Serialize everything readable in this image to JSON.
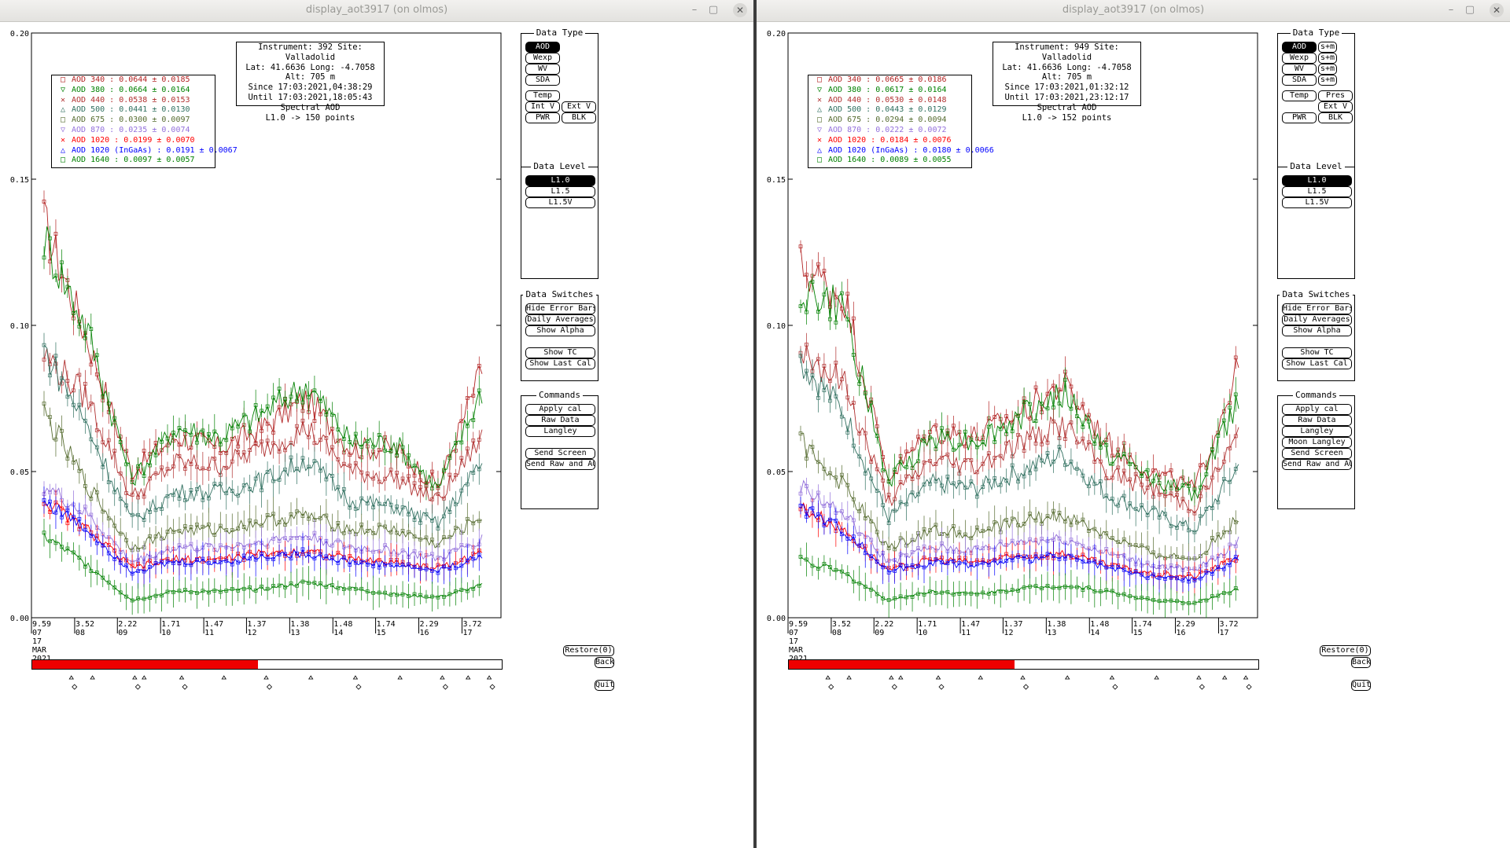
{
  "windows": [
    {
      "title": "display_aot3917 (on olmos)",
      "info": [
        "Instrument: 392 Site: Valladolid",
        "Lat: 41.6636 Long: -4.7058 Alt: 705 m",
        "Since 17:03:2021,04:38:29",
        "Until 17:03:2021,18:05:43",
        "Spectral AOD",
        "L1.0 -> 150 points"
      ],
      "legend": [
        {
          "label": "AOD 340  : 0.0644 ± 0.0185",
          "color": "#b22222",
          "marker": "□"
        },
        {
          "label": "AOD 380  : 0.0664 ± 0.0164",
          "color": "#008000",
          "marker": "▽"
        },
        {
          "label": "AOD 440  : 0.0538 ± 0.0153",
          "color": "#b03030",
          "marker": "✕"
        },
        {
          "label": "AOD 500  : 0.0441 ± 0.0130",
          "color": "#2f6f5f",
          "marker": "△"
        },
        {
          "label": "AOD 675  : 0.0300 ± 0.0097",
          "color": "#556b2f",
          "marker": "□"
        },
        {
          "label": "AOD 870  : 0.0235 ± 0.0074",
          "color": "#9370db",
          "marker": "▽"
        },
        {
          "label": "AOD 1020  : 0.0199 ± 0.0070",
          "color": "#ff0000",
          "marker": "✕"
        },
        {
          "label": "AOD 1020 (InGaAs)  : 0.0191 ± 0.0067",
          "color": "#0000ff",
          "marker": "△"
        },
        {
          "label": "AOD 1640  : 0.0097 ± 0.0057",
          "color": "#008000",
          "marker": "□"
        }
      ],
      "yticks": [
        "0.20",
        "0.15",
        "0.10",
        "0.05",
        "0.00"
      ],
      "xticks": [
        {
          "a": "9.59",
          "b": "07",
          "pos": 0.0
        },
        {
          "a": "3.52",
          "b": "08",
          "pos": 0.092
        },
        {
          "a": "2.22",
          "b": "09",
          "pos": 0.183
        },
        {
          "a": "1.71",
          "b": "10",
          "pos": 0.275
        },
        {
          "a": "1.47",
          "b": "11",
          "pos": 0.367
        },
        {
          "a": "1.37",
          "b": "12",
          "pos": 0.458
        },
        {
          "a": "1.38",
          "b": "13",
          "pos": 0.55
        },
        {
          "a": "1.48",
          "b": "14",
          "pos": 0.642
        },
        {
          "a": "1.74",
          "b": "15",
          "pos": 0.733
        },
        {
          "a": "2.29",
          "b": "16",
          "pos": 0.825
        },
        {
          "a": "3.72",
          "b": "17",
          "pos": 0.917
        }
      ],
      "date_label": [
        "17",
        "MAR",
        "2021"
      ],
      "progress": 0.48,
      "datatype_title": "Data Type",
      "datatype_buttons": [
        [
          "AOD"
        ],
        [
          "Wexp"
        ],
        [
          "WV"
        ],
        [
          "SDA"
        ]
      ],
      "datatype_selected": "AOD",
      "temp_buttons": [
        [
          "Temp",
          ""
        ],
        [
          "Int V",
          "Ext V"
        ],
        [
          "PWR",
          "BLK"
        ]
      ],
      "datalevel_title": "Data Level",
      "datalevel_buttons": [
        "L1.0",
        "L1.5",
        "L1.5V"
      ],
      "switches_title": "Data Switches",
      "switches": [
        "Hide Error Bars",
        "Daily Averages",
        "Show Alpha",
        "",
        "Show TC",
        "Show Last Cal"
      ],
      "commands_title": "Commands",
      "commands": [
        "Apply cal",
        "Raw Data",
        "Langley",
        "",
        "Send Screen",
        "Send Raw and AOD"
      ],
      "restore": "Restore(0)",
      "back": "Back",
      "quit": "Quit"
    },
    {
      "title": "display_aot3917 (on olmos)",
      "info": [
        "Instrument: 949 Site: Valladolid",
        "Lat: 41.6636 Long: -4.7058 Alt: 705 m",
        "Since 17:03:2021,01:32:12",
        "Until 17:03:2021,23:12:17",
        "Spectral AOD",
        "L1.0 -> 152 points"
      ],
      "legend": [
        {
          "label": "AOD 340  : 0.0665 ± 0.0186",
          "color": "#b22222",
          "marker": "□"
        },
        {
          "label": "AOD 380  : 0.0617 ± 0.0164",
          "color": "#008000",
          "marker": "▽"
        },
        {
          "label": "AOD 440  : 0.0530 ± 0.0148",
          "color": "#b03030",
          "marker": "✕"
        },
        {
          "label": "AOD 500  : 0.0443 ± 0.0129",
          "color": "#2f6f5f",
          "marker": "△"
        },
        {
          "label": "AOD 675  : 0.0294 ± 0.0094",
          "color": "#556b2f",
          "marker": "□"
        },
        {
          "label": "AOD 870  : 0.0222 ± 0.0072",
          "color": "#9370db",
          "marker": "▽"
        },
        {
          "label": "AOD 1020  : 0.0184 ± 0.0076",
          "color": "#ff0000",
          "marker": "✕"
        },
        {
          "label": "AOD 1020 (InGaAs)  : 0.0180 ± 0.0066",
          "color": "#0000ff",
          "marker": "△"
        },
        {
          "label": "AOD 1640  : 0.0089 ± 0.0055",
          "color": "#008000",
          "marker": "□"
        }
      ],
      "yticks": [
        "0.20",
        "0.15",
        "0.10",
        "0.05",
        "0.00"
      ],
      "xticks": [
        {
          "a": "9.59",
          "b": "07",
          "pos": 0.0
        },
        {
          "a": "3.52",
          "b": "08",
          "pos": 0.092
        },
        {
          "a": "2.22",
          "b": "09",
          "pos": 0.183
        },
        {
          "a": "1.71",
          "b": "10",
          "pos": 0.275
        },
        {
          "a": "1.47",
          "b": "11",
          "pos": 0.367
        },
        {
          "a": "1.37",
          "b": "12",
          "pos": 0.458
        },
        {
          "a": "1.38",
          "b": "13",
          "pos": 0.55
        },
        {
          "a": "1.48",
          "b": "14",
          "pos": 0.642
        },
        {
          "a": "1.74",
          "b": "15",
          "pos": 0.733
        },
        {
          "a": "2.29",
          "b": "16",
          "pos": 0.825
        },
        {
          "a": "3.72",
          "b": "17",
          "pos": 0.917
        }
      ],
      "date_label": [
        "17",
        "MAR",
        "2021"
      ],
      "progress": 0.48,
      "datatype_title": "Data Type",
      "datatype_buttons": [
        [
          "AOD",
          "s+m"
        ],
        [
          "Wexp",
          "s+m"
        ],
        [
          "WV",
          "s+m"
        ],
        [
          "SDA",
          "s+m"
        ]
      ],
      "datatype_selected": "AOD",
      "temp_buttons": [
        [
          "Temp",
          "Pres"
        ],
        [
          "",
          "Ext V"
        ],
        [
          "PWR",
          "BLK"
        ]
      ],
      "datalevel_title": "Data Level",
      "datalevel_buttons": [
        "L1.0",
        "L1.5",
        "L1.5V"
      ],
      "switches_title": "Data Switches",
      "switches": [
        "Hide Error Bars",
        "Daily Averages",
        "Show Alpha",
        "",
        "Show TC",
        "Show Last Cal"
      ],
      "commands_title": "Commands",
      "commands": [
        "Apply cal",
        "Raw Data",
        "Langley",
        "Moon Langley",
        "Send Screen",
        "Send Raw and AOD"
      ],
      "restore": "Restore(0)",
      "back": "Back",
      "quit": "Quit"
    }
  ],
  "chart_data": [
    {
      "type": "line",
      "ylim": [
        0,
        0.2
      ],
      "x_categories": [
        "07",
        "08",
        "09",
        "10",
        "11",
        "12",
        "13",
        "14",
        "15",
        "16",
        "17"
      ],
      "series_levels": {
        "AOD 340": [
          0.135,
          0.095,
          0.05,
          0.062,
          0.058,
          0.065,
          0.075,
          0.058,
          0.058,
          0.045,
          0.085
        ],
        "AOD 380": [
          0.13,
          0.098,
          0.047,
          0.065,
          0.062,
          0.07,
          0.08,
          0.06,
          0.06,
          0.044,
          0.078
        ],
        "AOD 440": [
          0.09,
          0.075,
          0.041,
          0.053,
          0.052,
          0.058,
          0.065,
          0.05,
          0.048,
          0.04,
          0.062
        ],
        "AOD 500": [
          0.092,
          0.065,
          0.033,
          0.043,
          0.043,
          0.047,
          0.054,
          0.04,
          0.038,
          0.032,
          0.053
        ],
        "AOD 675": [
          0.07,
          0.045,
          0.024,
          0.03,
          0.03,
          0.033,
          0.035,
          0.03,
          0.03,
          0.025,
          0.035
        ],
        "AOD 870": [
          0.045,
          0.035,
          0.019,
          0.024,
          0.024,
          0.026,
          0.028,
          0.024,
          0.023,
          0.02,
          0.027
        ],
        "AOD 1020": [
          0.04,
          0.03,
          0.017,
          0.02,
          0.02,
          0.022,
          0.023,
          0.02,
          0.019,
          0.017,
          0.022
        ],
        "AOD 1020 (InGaAs)": [
          0.04,
          0.03,
          0.016,
          0.019,
          0.019,
          0.021,
          0.022,
          0.019,
          0.018,
          0.016,
          0.021
        ],
        "AOD 1640": [
          0.028,
          0.018,
          0.006,
          0.009,
          0.009,
          0.01,
          0.012,
          0.01,
          0.008,
          0.007,
          0.011
        ]
      }
    },
    {
      "type": "line",
      "ylim": [
        0,
        0.2
      ],
      "x_categories": [
        "07",
        "08",
        "09",
        "10",
        "11",
        "12",
        "13",
        "14",
        "15",
        "16",
        "17"
      ],
      "series_levels": {
        "AOD 340": [
          0.12,
          0.11,
          0.048,
          0.064,
          0.062,
          0.07,
          0.08,
          0.06,
          0.05,
          0.044,
          0.086
        ],
        "AOD 380": [
          0.112,
          0.105,
          0.046,
          0.062,
          0.06,
          0.068,
          0.077,
          0.056,
          0.048,
          0.042,
          0.075
        ],
        "AOD 440": [
          0.092,
          0.08,
          0.04,
          0.054,
          0.052,
          0.06,
          0.066,
          0.05,
          0.044,
          0.038,
          0.062
        ],
        "AOD 500": [
          0.088,
          0.07,
          0.034,
          0.046,
          0.044,
          0.05,
          0.056,
          0.042,
          0.036,
          0.03,
          0.052
        ],
        "AOD 675": [
          0.06,
          0.045,
          0.024,
          0.03,
          0.029,
          0.033,
          0.035,
          0.028,
          0.022,
          0.02,
          0.034
        ],
        "AOD 870": [
          0.045,
          0.035,
          0.019,
          0.024,
          0.023,
          0.026,
          0.027,
          0.022,
          0.018,
          0.016,
          0.026
        ],
        "AOD 1020": [
          0.038,
          0.03,
          0.016,
          0.02,
          0.019,
          0.021,
          0.022,
          0.018,
          0.015,
          0.014,
          0.021
        ],
        "AOD 1020 (InGaAs)": [
          0.038,
          0.03,
          0.016,
          0.019,
          0.018,
          0.02,
          0.021,
          0.017,
          0.014,
          0.013,
          0.02
        ],
        "AOD 1640": [
          0.02,
          0.015,
          0.006,
          0.009,
          0.008,
          0.01,
          0.011,
          0.009,
          0.006,
          0.005,
          0.01
        ]
      }
    }
  ]
}
